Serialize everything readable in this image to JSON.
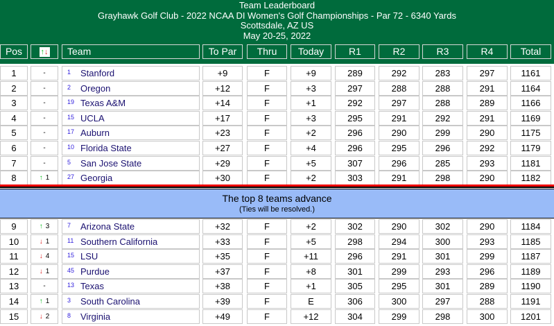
{
  "header": {
    "title": "Team Leaderboard",
    "subtitle": "Grayhawk Golf Club - 2022 NCAA DI Women's Golf Championships - Par 72 - 6340 Yards",
    "location": "Scottsdale, AZ US",
    "dates": "May 20-25, 2022"
  },
  "columns": {
    "pos": "Pos",
    "up": "↑",
    "down": "↓",
    "team": "Team",
    "topar": "To Par",
    "thru": "Thru",
    "today": "Today",
    "r1": "R1",
    "r2": "R2",
    "r3": "R3",
    "r4": "R4",
    "total": "Total"
  },
  "colors": {
    "header_bg": "#006b3c",
    "cut_band": "#99bbf8",
    "up": "#11bb22",
    "down": "#dd2222"
  },
  "cut": {
    "line1": "The top 8 teams advance",
    "line2": "(Ties will be resolved.)"
  },
  "rows": [
    {
      "pos": "1",
      "dir": "",
      "move": "-",
      "seed": "1",
      "team": "Stanford",
      "topar": "+9",
      "thru": "F",
      "today": "+9",
      "r1": "289",
      "r2": "292",
      "r3": "283",
      "r4": "297",
      "total": "1161"
    },
    {
      "pos": "2",
      "dir": "",
      "move": "-",
      "seed": "2",
      "team": "Oregon",
      "topar": "+12",
      "thru": "F",
      "today": "+3",
      "r1": "297",
      "r2": "288",
      "r3": "288",
      "r4": "291",
      "total": "1164"
    },
    {
      "pos": "3",
      "dir": "",
      "move": "-",
      "seed": "19",
      "team": "Texas A&M",
      "topar": "+14",
      "thru": "F",
      "today": "+1",
      "r1": "292",
      "r2": "297",
      "r3": "288",
      "r4": "289",
      "total": "1166"
    },
    {
      "pos": "4",
      "dir": "",
      "move": "-",
      "seed": "15",
      "team": "UCLA",
      "topar": "+17",
      "thru": "F",
      "today": "+3",
      "r1": "295",
      "r2": "291",
      "r3": "292",
      "r4": "291",
      "total": "1169"
    },
    {
      "pos": "5",
      "dir": "",
      "move": "-",
      "seed": "17",
      "team": "Auburn",
      "topar": "+23",
      "thru": "F",
      "today": "+2",
      "r1": "296",
      "r2": "290",
      "r3": "299",
      "r4": "290",
      "total": "1175"
    },
    {
      "pos": "6",
      "dir": "",
      "move": "-",
      "seed": "10",
      "team": "Florida State",
      "topar": "+27",
      "thru": "F",
      "today": "+4",
      "r1": "296",
      "r2": "295",
      "r3": "296",
      "r4": "292",
      "total": "1179"
    },
    {
      "pos": "7",
      "dir": "",
      "move": "-",
      "seed": "5",
      "team": "San Jose State",
      "topar": "+29",
      "thru": "F",
      "today": "+5",
      "r1": "307",
      "r2": "296",
      "r3": "285",
      "r4": "293",
      "total": "1181"
    },
    {
      "pos": "8",
      "dir": "up",
      "move": "1",
      "seed": "27",
      "team": "Georgia",
      "topar": "+30",
      "thru": "F",
      "today": "+2",
      "r1": "303",
      "r2": "291",
      "r3": "298",
      "r4": "290",
      "total": "1182"
    },
    {
      "pos": "9",
      "dir": "up",
      "move": "3",
      "seed": "7",
      "team": "Arizona State",
      "topar": "+32",
      "thru": "F",
      "today": "+2",
      "r1": "302",
      "r2": "290",
      "r3": "302",
      "r4": "290",
      "total": "1184"
    },
    {
      "pos": "10",
      "dir": "down",
      "move": "1",
      "seed": "11",
      "team": "Southern California",
      "topar": "+33",
      "thru": "F",
      "today": "+5",
      "r1": "298",
      "r2": "294",
      "r3": "300",
      "r4": "293",
      "total": "1185"
    },
    {
      "pos": "11",
      "dir": "down",
      "move": "4",
      "seed": "15",
      "team": "LSU",
      "topar": "+35",
      "thru": "F",
      "today": "+11",
      "r1": "296",
      "r2": "291",
      "r3": "301",
      "r4": "299",
      "total": "1187"
    },
    {
      "pos": "12",
      "dir": "down",
      "move": "1",
      "seed": "45",
      "team": "Purdue",
      "topar": "+37",
      "thru": "F",
      "today": "+8",
      "r1": "301",
      "r2": "299",
      "r3": "293",
      "r4": "296",
      "total": "1189"
    },
    {
      "pos": "13",
      "dir": "",
      "move": "-",
      "seed": "13",
      "team": "Texas",
      "topar": "+38",
      "thru": "F",
      "today": "+1",
      "r1": "305",
      "r2": "295",
      "r3": "301",
      "r4": "289",
      "total": "1190"
    },
    {
      "pos": "14",
      "dir": "up",
      "move": "1",
      "seed": "3",
      "team": "South Carolina",
      "topar": "+39",
      "thru": "F",
      "today": "E",
      "r1": "306",
      "r2": "300",
      "r3": "297",
      "r4": "288",
      "total": "1191"
    },
    {
      "pos": "15",
      "dir": "down",
      "move": "2",
      "seed": "8",
      "team": "Virginia",
      "topar": "+49",
      "thru": "F",
      "today": "+12",
      "r1": "304",
      "r2": "299",
      "r3": "298",
      "r4": "300",
      "total": "1201"
    }
  ]
}
